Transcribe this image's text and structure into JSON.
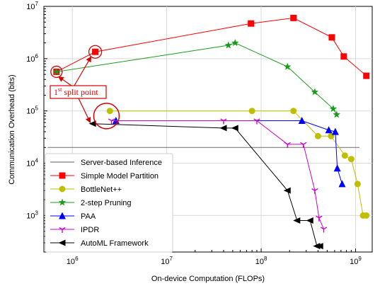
{
  "chart_data": {
    "type": "line",
    "xlabel": "On-device Computation (FLOPs)",
    "ylabel": "Communication Overhead (bits)",
    "xscale": "log",
    "yscale": "log",
    "xlim": [
      500000,
      1500000000
    ],
    "ylim": [
      200,
      10000000
    ],
    "x_ticks": [
      {
        "value": 1000000,
        "base": "10",
        "exp": "6"
      },
      {
        "value": 10000000,
        "base": "10",
        "exp": "7"
      },
      {
        "value": 100000000,
        "base": "10",
        "exp": "8"
      },
      {
        "value": 1000000000,
        "base": "10",
        "exp": "9"
      }
    ],
    "y_ticks": [
      {
        "value": 1000,
        "base": "10",
        "exp": "3"
      },
      {
        "value": 10000,
        "base": "10",
        "exp": "4"
      },
      {
        "value": 100000,
        "base": "10",
        "exp": "5"
      },
      {
        "value": 1000000,
        "base": "10",
        "exp": "6"
      },
      {
        "value": 10000000,
        "base": "10",
        "exp": "7"
      }
    ],
    "grid": true,
    "legend": "bottom-left",
    "series": [
      {
        "name": "Server-based Inference",
        "color": "#7f7f7f",
        "marker": "none",
        "points": [
          [
            550000,
            20000
          ],
          [
            1100000000,
            20000
          ]
        ]
      },
      {
        "name": "Simple Model Partition",
        "color": "#ff0000",
        "marker": "square",
        "points": [
          [
            680000,
            560000
          ],
          [
            1750000,
            1350000
          ],
          [
            78000000,
            4700000
          ],
          [
            220000000,
            6000000
          ],
          [
            560000000,
            2550000
          ],
          [
            750000000,
            1100000
          ],
          [
            1300000000,
            470000
          ]
        ]
      },
      {
        "name": "BottleNet++",
        "color": "#bfbf00",
        "marker": "circle",
        "points": [
          [
            2500000,
            100000
          ],
          [
            80000000,
            100000
          ],
          [
            220000000,
            100000
          ],
          [
            400000000,
            33000
          ],
          [
            550000000,
            33000
          ],
          [
            770000000,
            14000
          ],
          [
            900000000,
            12000
          ],
          [
            1050000000,
            4000
          ],
          [
            1200000000,
            1000
          ],
          [
            1300000000,
            1000
          ]
        ]
      },
      {
        "name": "2-step Pruning",
        "color": "#1a9a1a",
        "marker": "star",
        "points": [
          [
            680000,
            560000
          ],
          [
            45000000,
            1800000
          ],
          [
            53000000,
            2000000
          ],
          [
            190000000,
            700000
          ],
          [
            370000000,
            230000
          ],
          [
            580000000,
            110000
          ],
          [
            630000000,
            85000
          ]
        ]
      },
      {
        "name": "PAA",
        "color": "#0000ff",
        "marker": "triangle",
        "points": [
          [
            2900000,
            65000
          ],
          [
            270000000,
            65000
          ],
          [
            520000000,
            43000
          ],
          [
            610000000,
            40000
          ],
          [
            640000000,
            8000
          ],
          [
            720000000,
            4000
          ]
        ]
      },
      {
        "name": "IPDR",
        "color": "#cc00cc",
        "marker": "tri_down",
        "points": [
          [
            2600000,
            65000
          ],
          [
            40000000,
            65000
          ],
          [
            90000000,
            65000
          ],
          [
            190000000,
            23000
          ],
          [
            280000000,
            23000
          ],
          [
            370000000,
            3000
          ],
          [
            410000000,
            900
          ],
          [
            460000000,
            550
          ]
        ]
      },
      {
        "name": "AutoML Framework",
        "color": "#000000",
        "marker": "triangle_left",
        "points": [
          [
            1650000,
            57000
          ],
          [
            40000000,
            47000
          ],
          [
            53000000,
            47000
          ],
          [
            190000000,
            3000
          ],
          [
            240000000,
            800
          ],
          [
            330000000,
            800
          ],
          [
            390000000,
            260
          ],
          [
            420000000,
            260
          ]
        ]
      }
    ],
    "annotation": {
      "text": "1",
      "sup": "st",
      "rest": " split point"
    }
  }
}
